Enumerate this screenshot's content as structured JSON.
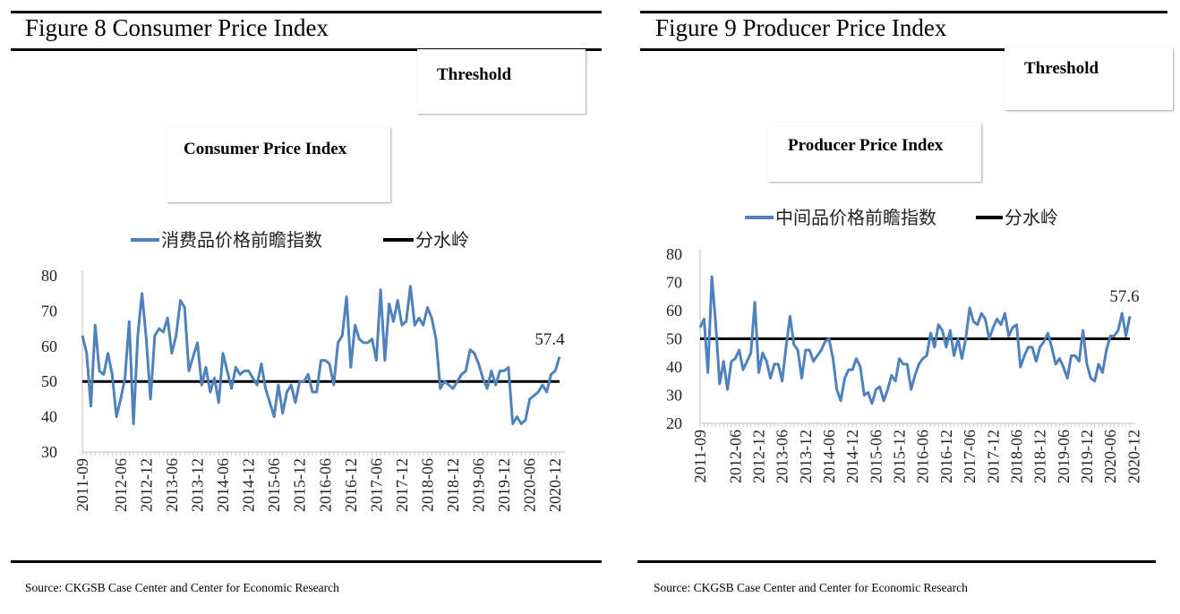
{
  "figures": [
    {
      "title": "Figure 8 Consumer Price Index",
      "threshold_box_label": "Threshold",
      "index_box_label": "Consumer Price Index",
      "source": "Source: CKGSB Case Center and Center for Economic Research"
    },
    {
      "title": "Figure 9 Producer Price Index",
      "threshold_box_label": "Threshold",
      "index_box_label": "Producer  Price Index",
      "source": "Source: CKGSB Case Center and Center for Economic Research"
    }
  ],
  "chart_data": [
    {
      "type": "line",
      "x_start": "2011-09",
      "x_end": "2020-12",
      "x_ticks": [
        "2011-09",
        "2012-06",
        "2012-12",
        "2013-06",
        "2013-12",
        "2014-06",
        "2014-12",
        "2015-06",
        "2015-12",
        "2016-06",
        "2016-12",
        "2017-06",
        "2017-12",
        "2018-06",
        "2018-12",
        "2019-06",
        "2019-12",
        "2020-06",
        "2020-12"
      ],
      "y_ticks": [
        "80",
        "70",
        "60",
        "50",
        "40",
        "30"
      ],
      "ylim": [
        30,
        80
      ],
      "grid": false,
      "legend_position": "top",
      "series": [
        {
          "name": "消费品价格前瞻指数",
          "color": "#4f81bd",
          "values": [
            63,
            58,
            43,
            66,
            53,
            52,
            58,
            52,
            40,
            45,
            51,
            67,
            38,
            63,
            75,
            62,
            45,
            63,
            65,
            64,
            68,
            58,
            63,
            73,
            71,
            53,
            57,
            61,
            49,
            54,
            47,
            51,
            44,
            58,
            53,
            48,
            54,
            52,
            53,
            53,
            51,
            49,
            55,
            48,
            44,
            40,
            49,
            41,
            47,
            49,
            44,
            50,
            50,
            52,
            47,
            47,
            56,
            56,
            55,
            49,
            61,
            63,
            74,
            54,
            66,
            62,
            61,
            61,
            62,
            56,
            76,
            56,
            72,
            67,
            73,
            66,
            67,
            77,
            66,
            68,
            66,
            71,
            68,
            62,
            48,
            50,
            49,
            48,
            50,
            52,
            53,
            59,
            58,
            55,
            51,
            48,
            53,
            49,
            53,
            53,
            54,
            38,
            40,
            38,
            39,
            45,
            46,
            47,
            49,
            47,
            52,
            53,
            57
          ]
        },
        {
          "name": "分水岭",
          "color": "#000000",
          "values": [
            50,
            50
          ]
        }
      ],
      "annotations": [
        "57.4"
      ]
    },
    {
      "type": "line",
      "x_start": "2011-09",
      "x_end": "2020-12",
      "x_ticks": [
        "2011-09",
        "2012-06",
        "2012-12",
        "2013-06",
        "2013-12",
        "2014-06",
        "2014-12",
        "2015-06",
        "2015-12",
        "2016-06",
        "2016-12",
        "2017-06",
        "2017-12",
        "2018-06",
        "2018-12",
        "2019-06",
        "2019-12",
        "2020-06",
        "2020-12"
      ],
      "y_ticks": [
        "80",
        "70",
        "60",
        "50",
        "40",
        "30",
        "20"
      ],
      "ylim": [
        20,
        80
      ],
      "grid": false,
      "legend_position": "top",
      "series": [
        {
          "name": "中间品价格前瞻指数",
          "color": "#4f81bd",
          "values": [
            54,
            57,
            38,
            72,
            55,
            34,
            42,
            32,
            42,
            43,
            46,
            39,
            42,
            45,
            63,
            38,
            45,
            42,
            36,
            41,
            41,
            35,
            47,
            58,
            48,
            46,
            36,
            46,
            46,
            42,
            44,
            46,
            49,
            50,
            43,
            32,
            28,
            36,
            39,
            39,
            43,
            40,
            30,
            31,
            27,
            32,
            33,
            28,
            32,
            37,
            35,
            43,
            41,
            41,
            32,
            37,
            41,
            43,
            44,
            52,
            47,
            55,
            53,
            47,
            53,
            44,
            50,
            43,
            50,
            61,
            56,
            55,
            59,
            57,
            50,
            54,
            57,
            55,
            59,
            51,
            54,
            55,
            40,
            44,
            47,
            47,
            42,
            47,
            49,
            52,
            47,
            41,
            43,
            40,
            36,
            44,
            44,
            42,
            53,
            41,
            36,
            35,
            41,
            38,
            46,
            51,
            51,
            53,
            59,
            51,
            58
          ]
        },
        {
          "name": "分水岭",
          "color": "#000000",
          "values": [
            50,
            50
          ]
        }
      ],
      "annotations": [
        "57.6"
      ]
    }
  ]
}
